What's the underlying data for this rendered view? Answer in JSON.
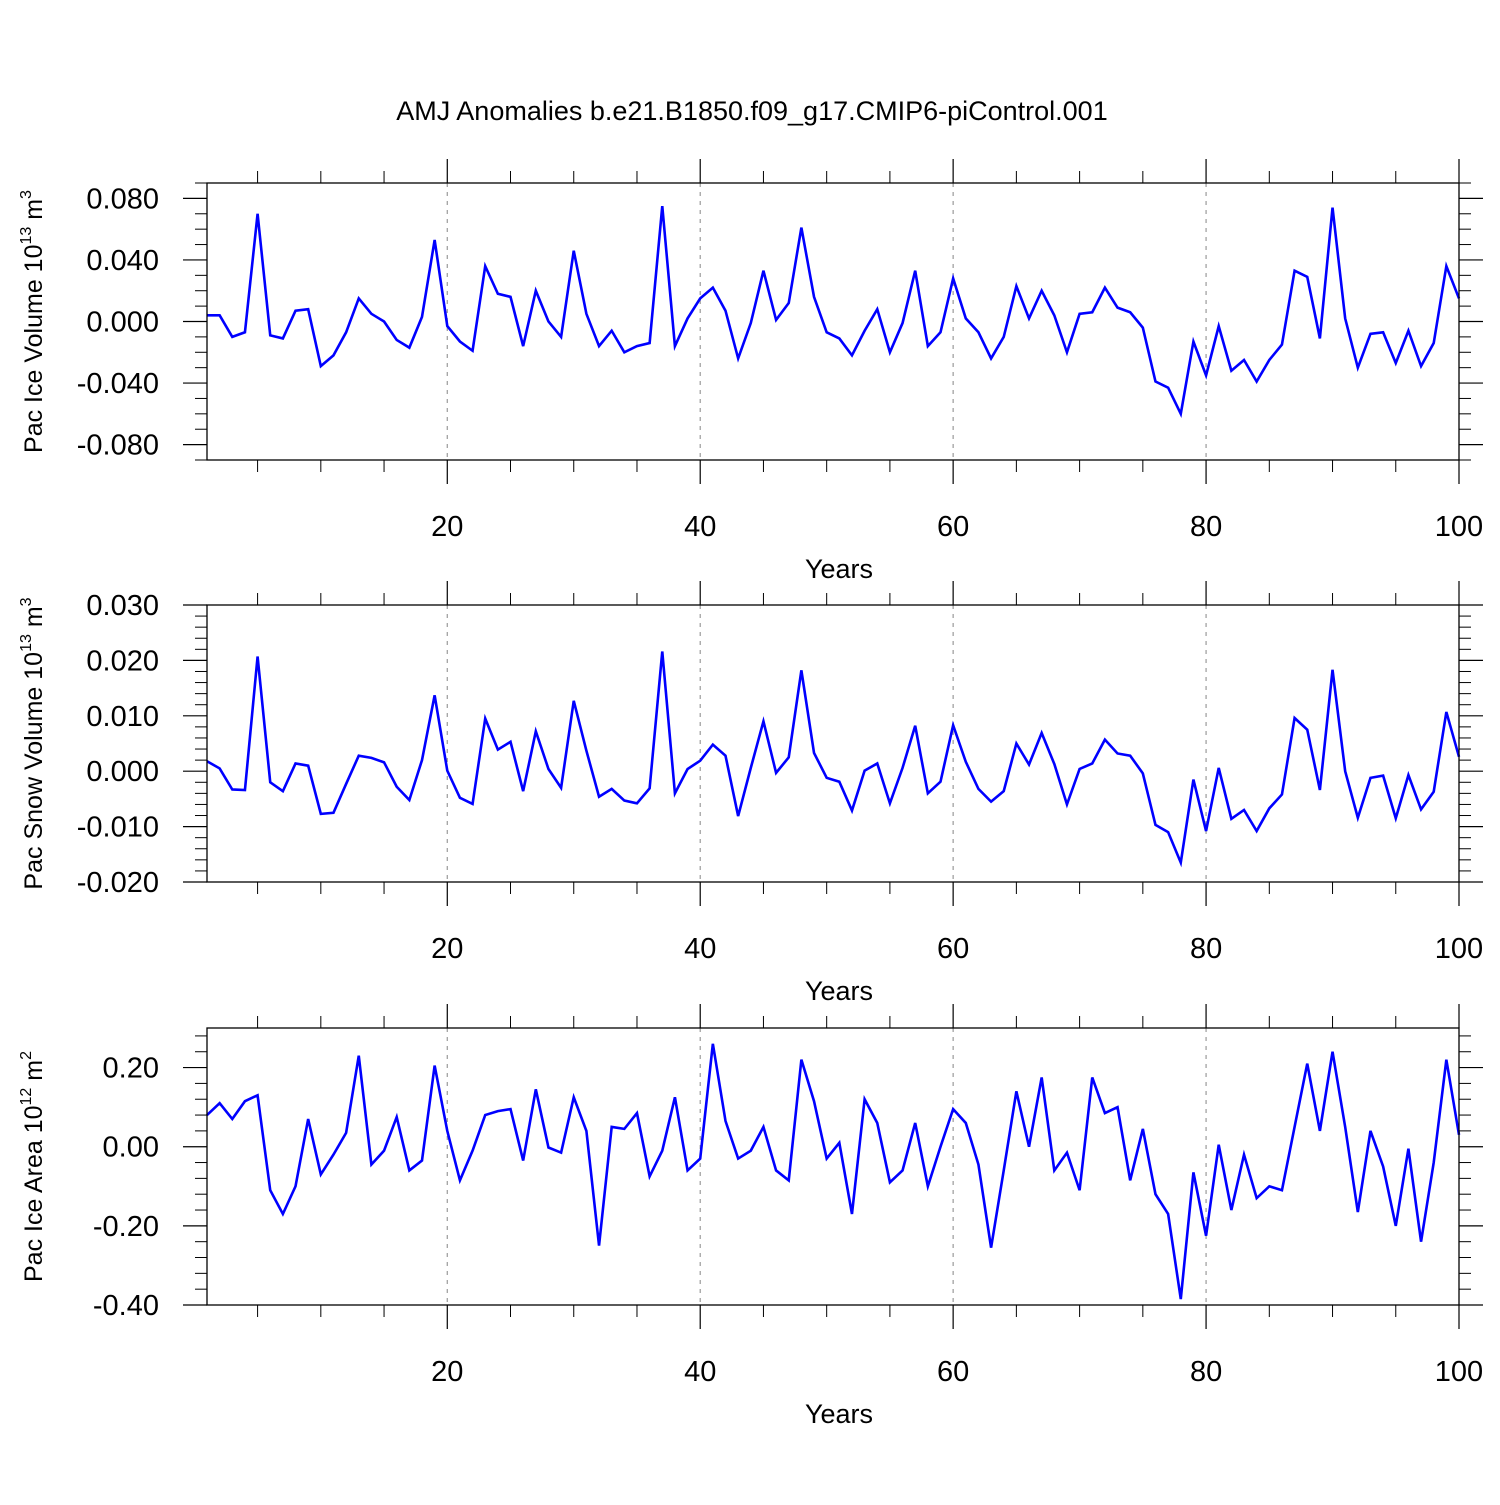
{
  "figure": {
    "title": "AMJ Anomalies b.e21.B1850.f09_g17.CMIP6-piControl.001",
    "line_color": "#0000ff",
    "grid_color": "#9a9a9a",
    "axis_color": "#000000"
  },
  "chart_data": [
    {
      "type": "line",
      "ylabel": "Pac Ice Volume 10",
      "ylabel_sup": "13",
      "ylabel_unit": " m",
      "ylabel_unit_sup": "3",
      "xlabel": "Years",
      "xlim": [
        1,
        100
      ],
      "ylim": [
        -0.09,
        0.09
      ],
      "yticks": [
        -0.08,
        -0.04,
        0.0,
        0.04,
        0.08
      ],
      "ytick_labels": [
        "-0.080",
        "-0.040",
        "0.000",
        "0.040",
        "0.080"
      ],
      "yminor_step": 0.01,
      "xticks": [
        20,
        40,
        60,
        80,
        100
      ],
      "xtick_labels": [
        "20",
        "40",
        "60",
        "80",
        "100"
      ],
      "xminor_step": 5,
      "grid_x": [
        20,
        40,
        60,
        80
      ],
      "values": [
        0.004,
        0.004,
        -0.01,
        -0.007,
        0.07,
        -0.009,
        -0.011,
        0.007,
        0.008,
        -0.029,
        -0.022,
        -0.007,
        0.015,
        0.005,
        0.0,
        -0.012,
        -0.017,
        0.003,
        0.053,
        -0.003,
        -0.013,
        -0.019,
        0.036,
        0.018,
        0.016,
        -0.016,
        0.02,
        0.0,
        -0.01,
        0.046,
        0.005,
        -0.016,
        -0.006,
        -0.02,
        -0.016,
        -0.014,
        0.075,
        -0.016,
        0.002,
        0.015,
        0.022,
        0.007,
        -0.024,
        -0.001,
        0.033,
        0.001,
        0.012,
        0.061,
        0.016,
        -0.007,
        -0.011,
        -0.022,
        -0.006,
        0.008,
        -0.02,
        -0.001,
        0.033,
        -0.016,
        -0.007,
        0.028,
        0.002,
        -0.007,
        -0.024,
        -0.01,
        0.023,
        0.002,
        0.02,
        0.004,
        -0.02,
        0.005,
        0.006,
        0.022,
        0.009,
        0.006,
        -0.004,
        -0.039,
        -0.043,
        -0.06,
        -0.013,
        -0.035,
        -0.003,
        -0.032,
        -0.025,
        -0.039,
        -0.025,
        -0.015,
        0.033,
        0.029,
        -0.011,
        0.074,
        0.002,
        -0.03,
        -0.008,
        -0.007,
        -0.027,
        -0.006,
        -0.029,
        -0.014,
        0.036,
        0.015
      ]
    },
    {
      "type": "line",
      "ylabel": "Pac Snow Volume 10",
      "ylabel_sup": "13",
      "ylabel_unit": " m",
      "ylabel_unit_sup": "3",
      "xlabel": "Years",
      "xlim": [
        1,
        100
      ],
      "ylim": [
        -0.02,
        0.03
      ],
      "yticks": [
        -0.02,
        -0.01,
        0.0,
        0.01,
        0.02,
        0.03
      ],
      "ytick_labels": [
        "-0.020",
        "-0.010",
        "0.000",
        "0.010",
        "0.020",
        "0.030"
      ],
      "yminor_step": 0.002,
      "xticks": [
        20,
        40,
        60,
        80,
        100
      ],
      "xtick_labels": [
        "20",
        "40",
        "60",
        "80",
        "100"
      ],
      "xminor_step": 5,
      "grid_x": [
        20,
        40,
        60,
        80
      ],
      "values": [
        0.0018,
        0.0005,
        -0.0033,
        -0.0034,
        0.0207,
        -0.002,
        -0.0036,
        0.0014,
        0.001,
        -0.0077,
        -0.0075,
        -0.0023,
        0.0028,
        0.0024,
        0.0016,
        -0.0028,
        -0.0052,
        0.002,
        0.0137,
        0.0001,
        -0.0048,
        -0.0059,
        0.0095,
        0.0039,
        0.0053,
        -0.0036,
        0.0072,
        0.0004,
        -0.003,
        0.0127,
        0.0037,
        -0.0046,
        -0.0032,
        -0.0053,
        -0.0058,
        -0.0031,
        0.0216,
        -0.004,
        0.0004,
        0.0019,
        0.0048,
        0.0028,
        -0.0081,
        0.0006,
        0.009,
        -0.0003,
        0.0025,
        0.0182,
        0.0033,
        -0.0012,
        -0.0019,
        -0.0071,
        0.0001,
        0.0014,
        -0.0058,
        0.0006,
        0.0082,
        -0.004,
        -0.0019,
        0.0083,
        0.0017,
        -0.0032,
        -0.0055,
        -0.0036,
        0.005,
        0.0012,
        0.0069,
        0.0013,
        -0.006,
        0.0004,
        0.0014,
        0.0057,
        0.0032,
        0.0028,
        -0.0004,
        -0.0097,
        -0.011,
        -0.0165,
        -0.0015,
        -0.0108,
        0.0006,
        -0.0086,
        -0.007,
        -0.0108,
        -0.0067,
        -0.0042,
        0.0096,
        0.0075,
        -0.0034,
        0.0183,
        0.0,
        -0.0084,
        -0.0012,
        -0.0008,
        -0.0085,
        -0.0007,
        -0.0069,
        -0.0037,
        0.0107,
        0.0026
      ]
    },
    {
      "type": "line",
      "ylabel": "Pac Ice Area 10",
      "ylabel_sup": "12",
      "ylabel_unit": " m",
      "ylabel_unit_sup": "2",
      "xlabel": "Years",
      "xlim": [
        1,
        100
      ],
      "ylim": [
        -0.4,
        0.3
      ],
      "yticks": [
        -0.4,
        -0.2,
        0.0,
        0.2
      ],
      "ytick_labels": [
        "-0.40",
        "-0.20",
        "0.00",
        "0.20"
      ],
      "yminor_step": 0.04,
      "xticks": [
        20,
        40,
        60,
        80,
        100
      ],
      "xtick_labels": [
        "20",
        "40",
        "60",
        "80",
        "100"
      ],
      "xminor_step": 5,
      "grid_x": [
        20,
        40,
        60,
        80
      ],
      "values": [
        0.08,
        0.11,
        0.07,
        0.115,
        0.13,
        -0.11,
        -0.17,
        -0.1,
        0.07,
        -0.07,
        -0.02,
        0.035,
        0.23,
        -0.045,
        -0.01,
        0.075,
        -0.06,
        -0.035,
        0.205,
        0.04,
        -0.085,
        -0.01,
        0.08,
        0.09,
        0.095,
        -0.035,
        0.145,
        -0.002,
        -0.015,
        0.125,
        0.04,
        -0.25,
        0.05,
        0.045,
        0.085,
        -0.075,
        -0.01,
        0.125,
        -0.06,
        -0.03,
        0.26,
        0.065,
        -0.03,
        -0.01,
        0.05,
        -0.06,
        -0.085,
        0.22,
        0.115,
        -0.03,
        0.01,
        -0.17,
        0.12,
        0.06,
        -0.09,
        -0.06,
        0.06,
        -0.1,
        0.0,
        0.095,
        0.06,
        -0.045,
        -0.255,
        -0.06,
        0.14,
        0.0,
        0.175,
        -0.06,
        -0.015,
        -0.11,
        0.175,
        0.085,
        0.1,
        -0.085,
        0.045,
        -0.12,
        -0.17,
        -0.385,
        -0.065,
        -0.225,
        0.005,
        -0.16,
        -0.02,
        -0.13,
        -0.1,
        -0.11,
        0.05,
        0.21,
        0.04,
        0.24,
        0.05,
        -0.165,
        0.04,
        -0.05,
        -0.2,
        -0.005,
        -0.24,
        -0.04,
        0.22,
        0.03
      ]
    }
  ]
}
